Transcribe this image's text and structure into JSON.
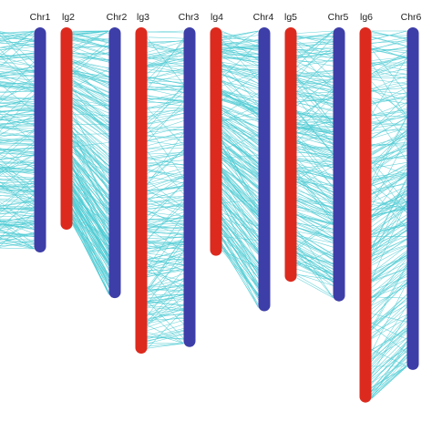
{
  "colors": {
    "lg": "#dd2a1e",
    "chr": "#3e3ea8",
    "link": "#4ecbd3"
  },
  "chromosomes": [
    {
      "id": "pre",
      "label": "",
      "kind": "lg",
      "len": 0.69
    },
    {
      "id": "chr1",
      "label": "Chr1",
      "kind": "chr",
      "len": 0.69
    },
    {
      "id": "lg2",
      "label": "lg2",
      "kind": "lg",
      "len": 0.62
    },
    {
      "id": "chr2",
      "label": "Chr2",
      "kind": "chr",
      "len": 0.83
    },
    {
      "id": "lg3",
      "label": "lg3",
      "kind": "lg",
      "len": 1.0
    },
    {
      "id": "chr3",
      "label": "Chr3",
      "kind": "chr",
      "len": 0.98
    },
    {
      "id": "lg4",
      "label": "lg4",
      "kind": "lg",
      "len": 0.7
    },
    {
      "id": "chr4",
      "label": "Chr4",
      "kind": "chr",
      "len": 0.87
    },
    {
      "id": "lg5",
      "label": "lg5",
      "kind": "lg",
      "len": 0.78
    },
    {
      "id": "chr5",
      "label": "Chr5",
      "kind": "chr",
      "len": 0.84
    },
    {
      "id": "lg6",
      "label": "lg6",
      "kind": "lg",
      "len": 1.15
    },
    {
      "id": "chr6",
      "label": "Chr6",
      "kind": "chr",
      "len": 1.05
    }
  ],
  "syntenies": [
    {
      "from": "pre",
      "to": "chr1"
    },
    {
      "from": "lg2",
      "to": "chr2"
    },
    {
      "from": "lg3",
      "to": "chr3"
    },
    {
      "from": "lg4",
      "to": "chr4"
    },
    {
      "from": "lg5",
      "to": "chr5"
    },
    {
      "from": "lg6",
      "to": "chr6"
    }
  ]
}
